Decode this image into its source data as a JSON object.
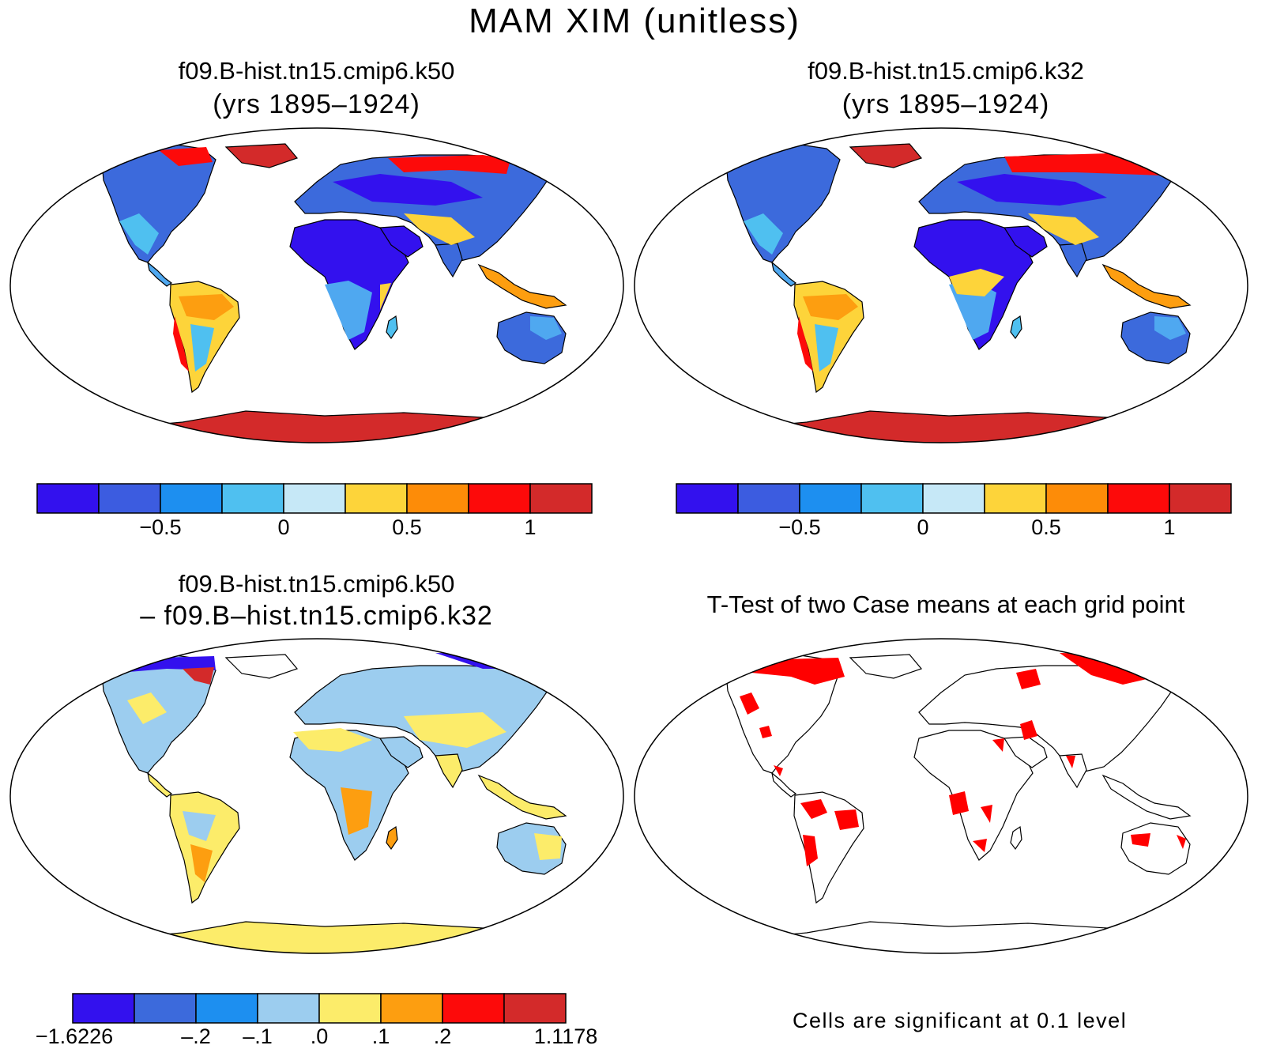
{
  "title": "MAM XIM (unitless)",
  "panels": {
    "top_left": {
      "title": "f09.B-hist.tn15.cmip6.k50",
      "subtitle": "(yrs 1895–1924)"
    },
    "top_right": {
      "title": "f09.B-hist.tn15.cmip6.k32",
      "subtitle": "(yrs 1895–1924)"
    },
    "bottom_left": {
      "title": "f09.B-hist.tn15.cmip6.k50",
      "subtitle": "– f09.B–hist.tn15.cmip6.k32"
    },
    "bottom_right": {
      "title": "T-Test of two Case means at each grid point",
      "note": "Cells are significant at 0.1 level"
    }
  },
  "colorbar_top": {
    "colors": [
      "#3311ee",
      "#3c5ce0",
      "#1d8ff0",
      "#4fc0f0",
      "#c6e8f7",
      "#fdd43a",
      "#fd8c08",
      "#fd0a0a",
      "#d32a2a"
    ],
    "ticks": [
      "−0.5",
      "0",
      "0.5",
      "1"
    ]
  },
  "colorbar_bottom": {
    "colors": [
      "#3311ee",
      "#3c6adc",
      "#1d8ff0",
      "#9ccdef",
      "#fcec6a",
      "#fd9e10",
      "#fd0a0a",
      "#d32a2a"
    ],
    "ticks": [
      "−1.6226",
      "–.2",
      "–.1",
      ".0",
      ".1",
      ".2",
      "1.1178"
    ]
  },
  "significance_color": "#ff0000",
  "ocean_color": "#ffffff",
  "outline_color": "#000000"
}
